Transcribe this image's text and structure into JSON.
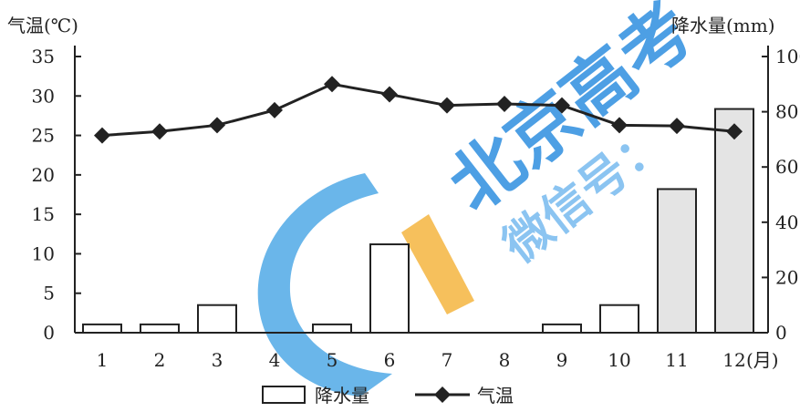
{
  "chart_data": {
    "type": "bar+line",
    "categories": [
      "1",
      "2",
      "3",
      "4",
      "5",
      "6",
      "7",
      "8",
      "9",
      "10",
      "11",
      "12"
    ],
    "x_unit": "(月)",
    "series": [
      {
        "name": "降水量",
        "kind": "bar",
        "axis": "right",
        "values": [
          3,
          3,
          10,
          0,
          3,
          32,
          0,
          0,
          3,
          10,
          52,
          81
        ]
      },
      {
        "name": "气温",
        "kind": "line",
        "axis": "left",
        "marker": "diamond",
        "values": [
          25,
          25.5,
          26.3,
          28.2,
          31.5,
          30.2,
          28.8,
          29,
          28.8,
          26.3,
          26.2,
          25.5
        ]
      }
    ],
    "ylabel_left": "气温(℃)",
    "ylabel_right": "降水量(mm)",
    "ylim_left": [
      0,
      35
    ],
    "yticks_left": [
      "0",
      "5",
      "10",
      "15",
      "20",
      "25",
      "30",
      "35"
    ],
    "ylim_right": [
      0,
      100
    ],
    "yticks_right": [
      "0",
      "20",
      "40",
      "60",
      "80",
      "100"
    ],
    "legend": [
      "降水量",
      "气温"
    ],
    "legend_position": "bottom",
    "grid": false
  },
  "watermark": {
    "text_main": "北京高考",
    "text_sub": "微信号：",
    "colors": {
      "blue": "#2f8fe0",
      "light_blue": "#6fb6ee",
      "orange": "#f5b94a"
    }
  }
}
